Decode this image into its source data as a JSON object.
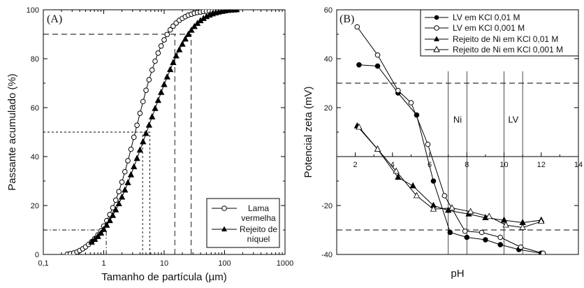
{
  "chart_data": [
    {
      "panel_label": "(A)",
      "type": "line",
      "xscale": "log",
      "xlabel": "Tamanho de partícula (µm)",
      "ylabel": "Passante acumulado (%)",
      "xlim": [
        0.1,
        1000
      ],
      "ylim": [
        0,
        100
      ],
      "xticks": [
        0.1,
        1,
        10,
        100,
        1000
      ],
      "xtick_labels": [
        "0,1",
        "1",
        "10",
        "100",
        "1000"
      ],
      "yticks": [
        0,
        20,
        40,
        60,
        80,
        100
      ],
      "ytick_labels": [
        "0",
        "20",
        "40",
        "60",
        "80",
        "100"
      ],
      "legend": {
        "placement": "bottom-right"
      },
      "series": [
        {
          "name": "Lama vermelha",
          "legend_lines": [
            "Lama",
            "vermelha"
          ],
          "marker": "open-circle",
          "color": "#000000",
          "x": [
            0.25,
            0.28,
            0.32,
            0.36,
            0.4,
            0.45,
            0.5,
            0.56,
            0.63,
            0.71,
            0.8,
            0.9,
            1.0,
            1.12,
            1.26,
            1.41,
            1.58,
            1.78,
            2.0,
            2.24,
            2.51,
            2.82,
            3.16,
            3.55,
            3.98,
            4.47,
            5.01,
            5.62,
            6.31,
            7.08,
            7.94,
            8.91,
            10.0,
            11.2,
            12.6,
            14.1,
            15.8,
            17.8,
            20.0,
            22.4,
            25.1,
            28.2,
            31.6,
            35.5,
            39.8,
            44.7,
            50.1,
            56.2,
            63.1,
            70.8,
            79.4,
            89.1,
            100,
            112,
            126,
            141,
            158
          ],
          "y": [
            0.1,
            0.3,
            0.6,
            1.0,
            1.6,
            2.3,
            3.1,
            4.1,
            5.2,
            6.5,
            8.0,
            9.7,
            11.6,
            13.8,
            16.3,
            19.1,
            22.2,
            25.7,
            29.6,
            33.8,
            38.3,
            43.0,
            47.9,
            52.8,
            57.7,
            62.5,
            67.1,
            71.4,
            75.4,
            79.0,
            82.3,
            85.2,
            87.7,
            89.9,
            91.8,
            93.3,
            94.6,
            95.7,
            96.5,
            97.2,
            97.8,
            98.2,
            98.6,
            98.9,
            99.1,
            99.3,
            99.4,
            99.5,
            99.6,
            99.7,
            99.8,
            99.8,
            99.9,
            99.9,
            99.9,
            100,
            100
          ]
        },
        {
          "name": "Rejeito de níquel",
          "legend_lines": [
            "Rejeito de",
            "níquel"
          ],
          "marker": "filled-triangle",
          "color": "#000000",
          "x": [
            0.63,
            0.71,
            0.8,
            0.9,
            1.0,
            1.12,
            1.26,
            1.41,
            1.58,
            1.78,
            2.0,
            2.24,
            2.51,
            2.82,
            3.16,
            3.55,
            3.98,
            4.47,
            5.01,
            5.62,
            6.31,
            7.08,
            7.94,
            8.91,
            10.0,
            11.2,
            12.6,
            14.1,
            15.8,
            17.8,
            20.0,
            22.4,
            25.1,
            28.2,
            31.6,
            35.5,
            39.8,
            44.7,
            50.1,
            56.2,
            63.1,
            70.8,
            79.4,
            89.1,
            100,
            112,
            126,
            141,
            158
          ],
          "y": [
            5.0,
            6.1,
            7.3,
            8.7,
            10.2,
            11.9,
            13.8,
            15.9,
            18.2,
            20.7,
            23.4,
            26.3,
            29.3,
            32.5,
            35.8,
            39.2,
            42.6,
            46.0,
            49.4,
            52.8,
            56.2,
            59.6,
            62.9,
            66.2,
            69.4,
            72.5,
            75.5,
            78.4,
            81.1,
            83.6,
            85.9,
            88.0,
            89.9,
            91.6,
            93.1,
            94.4,
            95.5,
            96.4,
            97.2,
            97.8,
            98.3,
            98.7,
            99.0,
            99.3,
            99.5,
            99.7,
            99.8,
            99.9,
            100
          ]
        }
      ],
      "reference_lines": [
        {
          "y": 90,
          "x_end": 28,
          "style": "long-dash"
        },
        {
          "y": 50,
          "x_end": 5.8,
          "style": "short-dash"
        },
        {
          "y": 10,
          "x_end": 1.1,
          "style": "dash-dot"
        },
        {
          "x": 28,
          "y_end": 90,
          "style": "long-dash"
        },
        {
          "x": 15,
          "y_end": 90,
          "style": "long-dash"
        },
        {
          "x": 5.8,
          "y_end": 50,
          "style": "short-dash"
        },
        {
          "x": 4.4,
          "y_end": 50,
          "style": "short-dash"
        },
        {
          "x": 1.1,
          "y_end": 10,
          "style": "dash-dot"
        }
      ]
    },
    {
      "panel_label": "(B)",
      "type": "line",
      "xlabel": "pH",
      "ylabel": "Potencial zeta (mV)",
      "xlim": [
        1,
        14
      ],
      "ylim": [
        -40,
        60
      ],
      "xticks": [
        2,
        4,
        6,
        8,
        10,
        12,
        14
      ],
      "xtick_labels": [
        "2",
        "4",
        "6",
        "8",
        "10",
        "12",
        "14"
      ],
      "yticks": [
        -40,
        -20,
        0,
        20,
        40,
        60
      ],
      "ytick_labels": [
        "-40",
        "-20",
        "",
        "20",
        "40",
        "60"
      ],
      "legend": {
        "placement": "top-right"
      },
      "series": [
        {
          "name": "LV em KCl 0,01 M",
          "marker": "filled-circle",
          "color": "#000000",
          "x": [
            2.2,
            3.2,
            4.3,
            5.3,
            6.2,
            7.1,
            8.0,
            9.0,
            9.8,
            10.8,
            12.0
          ],
          "y": [
            37.5,
            37,
            26,
            17,
            -10,
            -31,
            -33,
            -34,
            -36,
            -38,
            -39.5
          ]
        },
        {
          "name": "LV em KCl 0,001 M",
          "marker": "open-circle",
          "color": "#000000",
          "x": [
            2.1,
            3.2,
            4.3,
            5.0,
            5.9,
            6.8,
            7.9,
            8.8,
            9.8,
            10.9,
            12.1
          ],
          "y": [
            53,
            41.5,
            27,
            22,
            5,
            -16,
            -30.5,
            -31,
            -33,
            -37,
            -39.5
          ]
        },
        {
          "name": "Rejeito de Ni em KCl 0,01 M",
          "marker": "filled-triangle",
          "color": "#000000",
          "x": [
            2.1,
            3.2,
            4.3,
            5.1,
            6.2,
            7.0,
            8.1,
            9.0,
            10.0,
            11.0,
            12.0
          ],
          "y": [
            12.5,
            3,
            -8.5,
            -12,
            -20,
            -22,
            -23.5,
            -25,
            -26,
            -27,
            -26
          ]
        },
        {
          "name": "Rejeito de Ni em KCl 0,001 M",
          "marker": "open-triangle",
          "color": "#000000",
          "x": [
            2.2,
            3.2,
            4.2,
            5.3,
            6.2,
            7.2,
            8.2,
            9.2,
            10.1,
            11.0,
            12.0
          ],
          "y": [
            12,
            3,
            -6,
            -16,
            -21.5,
            -21,
            -22.5,
            -24.5,
            -28,
            -29,
            -26.5
          ]
        }
      ],
      "reference_lines": [
        {
          "y": 30,
          "style": "long-dash"
        },
        {
          "y": -30,
          "style": "long-dash"
        },
        {
          "x": 7,
          "style": "solid-thin"
        },
        {
          "x": 8,
          "style": "solid-thin"
        },
        {
          "x": 10,
          "style": "solid-thin"
        },
        {
          "x": 11,
          "style": "solid-thin"
        }
      ],
      "annotations": [
        {
          "text": "Ni",
          "x": 7.5,
          "y": 15
        },
        {
          "text": "LV",
          "x": 10.5,
          "y": 15
        }
      ]
    }
  ]
}
